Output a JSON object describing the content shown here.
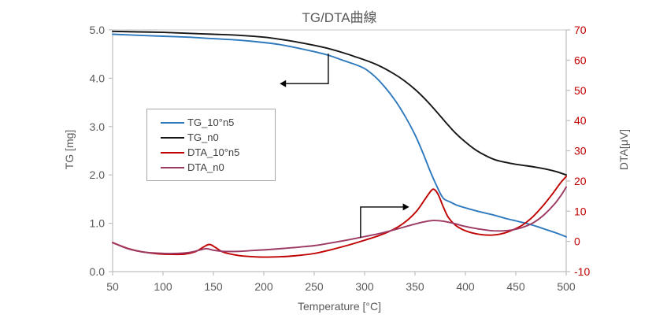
{
  "chart_data": {
    "type": "line",
    "title": "TG/DTA曲線",
    "xlabel": "Temperature [°C]",
    "ylabel_left": "TG [mg]",
    "ylabel_right": "DTA[μV]",
    "xlim": [
      50,
      500
    ],
    "x_ticks": [
      "50",
      "100",
      "150",
      "200",
      "250",
      "300",
      "350",
      "400",
      "450",
      "500"
    ],
    "ylim_left": [
      0.0,
      5.0
    ],
    "y_ticks_left": [
      "0.0",
      "1.0",
      "2.0",
      "3.0",
      "4.0",
      "5.0"
    ],
    "ylim_right": [
      -10,
      70
    ],
    "y_ticks_right": [
      "-10",
      "0",
      "10",
      "20",
      "30",
      "40",
      "50",
      "60",
      "70"
    ],
    "grid": "top-border-only",
    "legend_position": "inside-upper-left",
    "axis_line_color": "#bfbfbf",
    "gridline_color": "#d9d9d9",
    "tick_label_color": "#595959",
    "right_tick_label_color": "#c00000",
    "annotation_color": "#000000",
    "series": [
      {
        "name": "TG_10°n5",
        "axis": "left",
        "color": "#2e79bd",
        "x": [
          50,
          75,
          100,
          125,
          150,
          175,
          200,
          215,
          230,
          250,
          265,
          280,
          290,
          300,
          310,
          320,
          330,
          340,
          350,
          358,
          365,
          372,
          378,
          385,
          392,
          400,
          410,
          420,
          430,
          440,
          450,
          460,
          470,
          480,
          490,
          500
        ],
        "y": [
          4.91,
          4.89,
          4.87,
          4.85,
          4.82,
          4.79,
          4.74,
          4.7,
          4.64,
          4.55,
          4.47,
          4.36,
          4.29,
          4.2,
          4.04,
          3.82,
          3.55,
          3.22,
          2.83,
          2.45,
          2.08,
          1.75,
          1.52,
          1.44,
          1.37,
          1.32,
          1.26,
          1.21,
          1.16,
          1.1,
          1.05,
          1.0,
          0.94,
          0.87,
          0.8,
          0.72
        ]
      },
      {
        "name": "TG_n0",
        "axis": "left",
        "color": "#161616",
        "x": [
          50,
          75,
          100,
          125,
          150,
          175,
          200,
          215,
          230,
          250,
          265,
          280,
          290,
          300,
          310,
          320,
          330,
          340,
          350,
          360,
          370,
          380,
          390,
          400,
          410,
          420,
          430,
          440,
          450,
          460,
          470,
          480,
          490,
          500
        ],
        "y": [
          4.97,
          4.96,
          4.95,
          4.93,
          4.91,
          4.89,
          4.85,
          4.81,
          4.76,
          4.68,
          4.61,
          4.52,
          4.45,
          4.38,
          4.3,
          4.2,
          4.08,
          3.94,
          3.77,
          3.57,
          3.34,
          3.1,
          2.87,
          2.68,
          2.52,
          2.4,
          2.31,
          2.26,
          2.22,
          2.19,
          2.16,
          2.12,
          2.07,
          2.0
        ]
      },
      {
        "name": "DTA_10°n5",
        "axis": "right",
        "color": "#c00000",
        "x": [
          50,
          65,
          80,
          95,
          110,
          122,
          132,
          140,
          146,
          152,
          160,
          172,
          186,
          200,
          215,
          230,
          250,
          266,
          282,
          300,
          315,
          330,
          342,
          352,
          360,
          366,
          369,
          373,
          378,
          383,
          390,
          398,
          407,
          417,
          427,
          437,
          447,
          457,
          467,
          477,
          487,
          494,
          500
        ],
        "y": [
          -0.4,
          -2.3,
          -3.5,
          -4.1,
          -4.3,
          -4.2,
          -3.4,
          -1.9,
          -1.0,
          -2.0,
          -3.6,
          -4.5,
          -5.0,
          -5.2,
          -5.1,
          -4.8,
          -4.0,
          -2.8,
          -1.4,
          0.4,
          2.0,
          4.2,
          6.9,
          10.2,
          14.0,
          16.8,
          17.2,
          15.5,
          11.5,
          8.0,
          5.4,
          3.8,
          2.8,
          2.2,
          2.1,
          2.6,
          3.8,
          5.5,
          8.2,
          11.8,
          16.0,
          19.2,
          21.5
        ]
      },
      {
        "name": "DTA_n0",
        "axis": "right",
        "color": "#9c3a63",
        "x": [
          50,
          65,
          80,
          95,
          110,
          125,
          135,
          143,
          150,
          160,
          175,
          190,
          205,
          220,
          235,
          250,
          265,
          282,
          300,
          315,
          330,
          345,
          358,
          368,
          378,
          388,
          398,
          408,
          418,
          428,
          438,
          448,
          458,
          468,
          478,
          488,
          495,
          500
        ],
        "y": [
          -0.4,
          -2.4,
          -3.5,
          -3.9,
          -4.0,
          -3.7,
          -3.0,
          -2.4,
          -2.9,
          -3.3,
          -3.3,
          -3.0,
          -2.7,
          -2.3,
          -1.9,
          -1.4,
          -0.6,
          0.4,
          1.6,
          2.6,
          3.9,
          5.3,
          6.4,
          6.9,
          6.7,
          6.0,
          5.1,
          4.4,
          3.9,
          3.5,
          3.5,
          3.9,
          4.8,
          6.3,
          8.8,
          12.2,
          15.3,
          18.0
        ]
      }
    ],
    "annotations": [
      {
        "id": "tg-axis-pointer",
        "axis": "left",
        "points": [
          [
            264,
            4.51
          ],
          [
            264,
            3.89
          ],
          [
            222,
            3.89
          ]
        ]
      },
      {
        "id": "dta-axis-pointer",
        "axis": "right",
        "points": [
          [
            296,
            1.2
          ],
          [
            296,
            11.4
          ],
          [
            338,
            11.4
          ]
        ]
      }
    ]
  }
}
